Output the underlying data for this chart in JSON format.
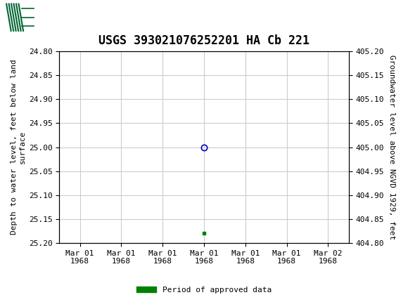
{
  "title": "USGS 393021076252201 HA Cb 221",
  "ylabel_left": "Depth to water level, feet below land\nsurface",
  "ylabel_right": "Groundwater level above NGVD 1929, feet",
  "ylim_left": [
    24.8,
    25.2
  ],
  "ylim_right": [
    404.8,
    405.2
  ],
  "y_ticks_left": [
    24.8,
    24.85,
    24.9,
    24.95,
    25.0,
    25.05,
    25.1,
    25.15,
    25.2
  ],
  "y_ticks_right": [
    404.8,
    404.85,
    404.9,
    404.95,
    405.0,
    405.05,
    405.1,
    405.15,
    405.2
  ],
  "x_tick_labels": [
    "Mar 01\n1968",
    "Mar 01\n1968",
    "Mar 01\n1968",
    "Mar 01\n1968",
    "Mar 01\n1968",
    "Mar 01\n1968",
    "Mar 02\n1968"
  ],
  "data_point_x": 3,
  "data_point_y": 25.0,
  "data_point_color": "#0000bb",
  "green_square_x": 3,
  "green_square_y": 25.18,
  "green_square_color": "#008000",
  "header_color": "#006633",
  "background_color": "#ffffff",
  "grid_color": "#cccccc",
  "legend_label": "Period of approved data",
  "legend_color": "#008000",
  "font_family": "monospace",
  "title_fontsize": 12,
  "axis_fontsize": 8,
  "tick_fontsize": 8,
  "x_range": [
    0,
    6
  ]
}
